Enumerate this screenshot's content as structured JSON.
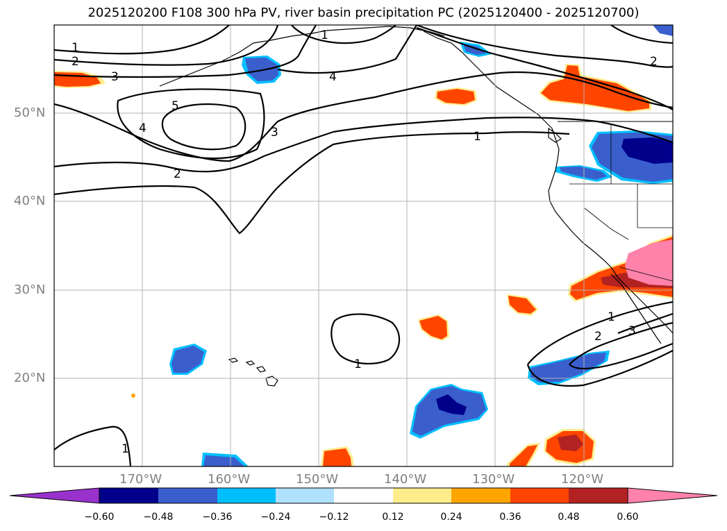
{
  "title": "2025120200 F108 300 hPa PV, river basin precipitation PC (2025120400 - 2025120700)",
  "axes": {
    "lon_labels": [
      "170°W",
      "160°W",
      "150°W",
      "140°W",
      "130°W",
      "120°W"
    ],
    "lat_labels": [
      "50°N",
      "40°N",
      "30°N",
      "20°N"
    ]
  },
  "colorbar": {
    "colors": [
      "#9932cc",
      "#00008b",
      "#3a5fcd",
      "#00bfff",
      "#b0e2ff",
      "#ffffff",
      "#ffec8b",
      "#ffa500",
      "#ff4500",
      "#b22222",
      "#ff82ab"
    ],
    "tick_labels": [
      "−0.60",
      "−0.48",
      "−0.36",
      "−0.24",
      "−0.12",
      "0.12",
      "0.24",
      "0.36",
      "0.48",
      "0.60"
    ]
  },
  "contour_labels": [
    "1",
    "2",
    "3",
    "4",
    "5",
    "4",
    "3",
    "2",
    "1",
    "2",
    "1",
    "1",
    "1",
    "2",
    "3",
    "1"
  ]
}
